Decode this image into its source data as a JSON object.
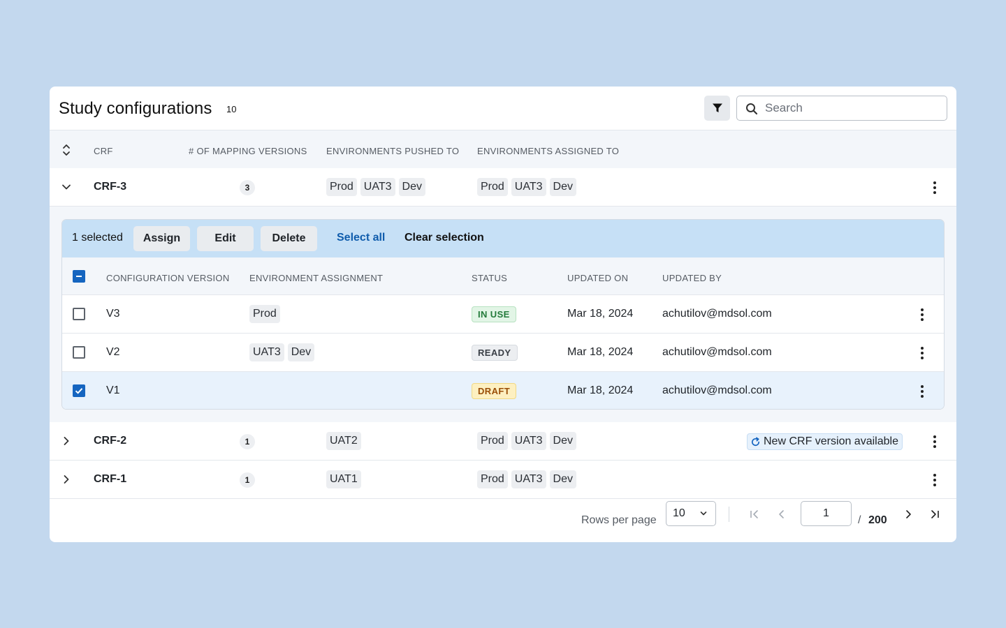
{
  "header": {
    "title": "Study configurations",
    "count": "10",
    "search_placeholder": "Search"
  },
  "columns": {
    "crf": "CRF",
    "mapping_versions": "# OF MAPPING VERSIONS",
    "env_pushed": "ENVIRONMENTS PUSHED TO",
    "env_assigned": "ENVIRONMENTS ASSIGNED TO"
  },
  "rows": [
    {
      "name": "CRF-3",
      "versions": "3",
      "pushed": [
        "Prod",
        "UAT3",
        "Dev"
      ],
      "assigned": [
        "Prod",
        "UAT3",
        "Dev"
      ],
      "expanded": true
    },
    {
      "name": "CRF-2",
      "versions": "1",
      "pushed": [
        "UAT2"
      ],
      "assigned": [
        "Prod",
        "UAT3",
        "Dev"
      ],
      "notice": "New CRF version available"
    },
    {
      "name": "CRF-1",
      "versions": "1",
      "pushed": [
        "UAT1"
      ],
      "assigned": [
        "Prod",
        "UAT3",
        "Dev"
      ]
    }
  ],
  "actionbar": {
    "selected_label": "1 selected",
    "assign": "Assign",
    "edit": "Edit",
    "delete": "Delete",
    "select_all": "Select all",
    "clear_selection": "Clear selection"
  },
  "sub_columns": {
    "config_version": "CONFIGURATION VERSION",
    "env_assignment": "ENVIRONMENT ASSIGNMENT",
    "status": "STATUS",
    "updated_on": "UPDATED ON",
    "updated_by": "UPDATED BY"
  },
  "sub_rows": [
    {
      "version": "V3",
      "envs": [
        "Prod"
      ],
      "status": "IN USE",
      "updated_on": "Mar 18, 2024",
      "updated_by": "achutilov@mdsol.com",
      "checked": false
    },
    {
      "version": "V2",
      "envs": [
        "UAT3",
        "Dev"
      ],
      "status": "READY",
      "updated_on": "Mar 18, 2024",
      "updated_by": "achutilov@mdsol.com",
      "checked": false
    },
    {
      "version": "V1",
      "envs": [],
      "status": "DRAFT",
      "updated_on": "Mar 18, 2024",
      "updated_by": "achutilov@mdsol.com",
      "checked": true
    }
  ],
  "pagination": {
    "rows_per_page_label": "Rows per page",
    "rows_per_page": "10",
    "current_page": "1",
    "slash": "/",
    "total_pages": "200"
  },
  "colors": {
    "background": "#c3d8ee",
    "accent": "#1565c0",
    "actionbar": "#c6e0f6",
    "link": "#0f5cac"
  }
}
